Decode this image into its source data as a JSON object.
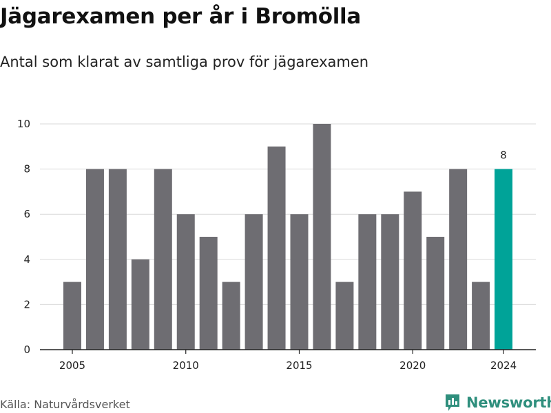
{
  "header": {
    "title": "Jägarexamen per år i Bromölla",
    "subtitle": "Antal som klarat av samtliga prov för jägarexamen"
  },
  "footer": {
    "source": "Källa: Naturvårdsverket",
    "brand": "Newsworthy",
    "brand_color": "#2f8f7d"
  },
  "colors": {
    "bar": "#6e6d72",
    "highlight": "#00a398",
    "grid": "#d9d9d9",
    "axis": "#222222"
  },
  "chart_data": {
    "type": "bar",
    "x": [
      2005,
      2006,
      2007,
      2008,
      2009,
      2010,
      2011,
      2012,
      2013,
      2014,
      2015,
      2016,
      2017,
      2018,
      2019,
      2020,
      2021,
      2022,
      2023,
      2024
    ],
    "values": [
      3,
      8,
      8,
      4,
      8,
      6,
      5,
      3,
      6,
      9,
      6,
      10,
      3,
      6,
      6,
      7,
      5,
      8,
      3,
      8
    ],
    "highlight_index": 19,
    "data_labels": [
      {
        "index": 19,
        "text": "8"
      }
    ],
    "ylim": [
      0,
      10
    ],
    "yticks": [
      0,
      2,
      4,
      6,
      8,
      10
    ],
    "xticks": [
      "2005",
      "2010",
      "2015",
      "2020",
      "2024"
    ],
    "grid": true,
    "xlabel": "",
    "ylabel": ""
  }
}
